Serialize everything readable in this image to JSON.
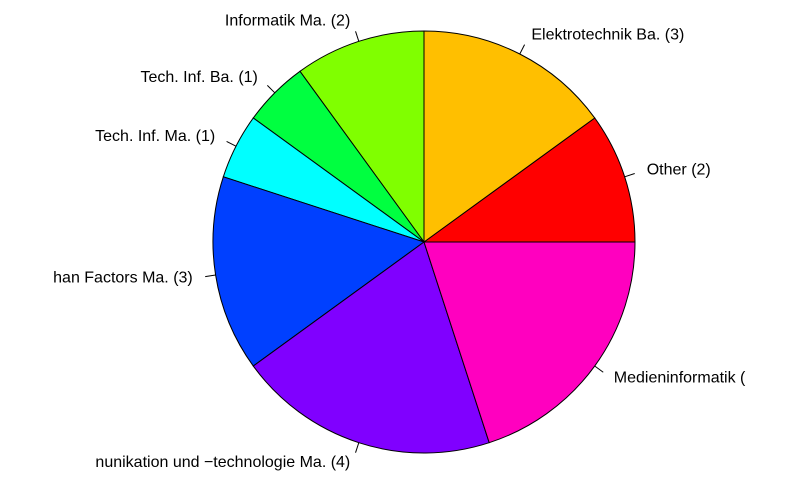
{
  "chart_data": {
    "type": "pie",
    "categories": [
      "Other (2)",
      "Elektrotechnik Ba. (3)",
      "Informatik Ma. (2)",
      "Tech. Inf. Ba. (1)",
      "Tech. Inf. Ma. (1)",
      "han Factors Ma. (3)",
      "nunikation und −technologie Ma. (4)",
      "Medieninformatik ("
    ],
    "values": [
      2,
      3,
      2,
      1,
      1,
      3,
      4,
      4
    ],
    "colors": [
      "#FF0000",
      "#FFBF00",
      "#80FF00",
      "#00FF40",
      "#00FFFF",
      "#0040FF",
      "#8000FF",
      "#FF00BF"
    ]
  }
}
